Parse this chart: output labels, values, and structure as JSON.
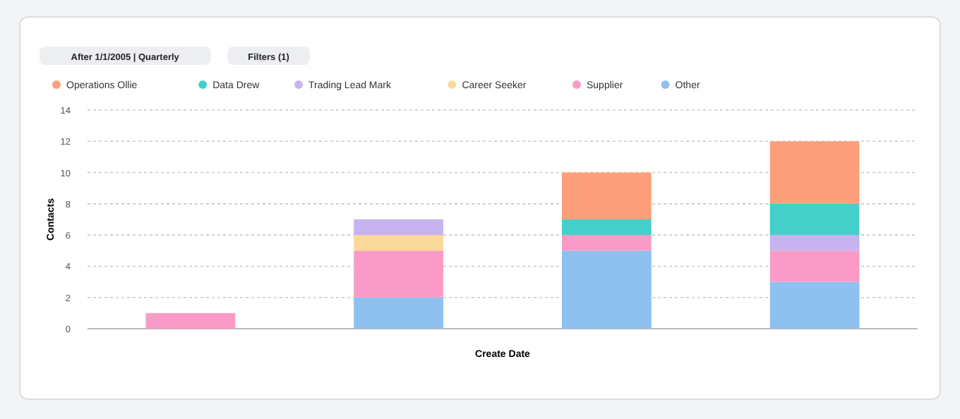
{
  "chart_data": {
    "type": "bar",
    "stacked": true,
    "xlabel": "Create Date",
    "ylabel": "Contacts",
    "annotations": [
      "After 1/1/2005 | Quarterly",
      "Filters (1)"
    ],
    "categories": [
      null,
      null,
      null,
      null
    ],
    "series": [
      {
        "name": "Other",
        "color": "#8ec1f0",
        "values": [
          0,
          2,
          5,
          3
        ]
      },
      {
        "name": "Supplier",
        "color": "#f99bc6",
        "values": [
          1,
          3,
          1,
          2
        ]
      },
      {
        "name": "Career Seeker",
        "color": "#fad99a",
        "values": [
          0,
          1,
          0,
          0
        ]
      },
      {
        "name": "Trading Lead Mark",
        "color": "#c6b3ef",
        "values": [
          0,
          1,
          0,
          1
        ]
      },
      {
        "name": "Data Drew",
        "color": "#43d0c8",
        "values": [
          0,
          0,
          1,
          2
        ]
      },
      {
        "name": "Operations Ollie",
        "color": "#fc9f7a",
        "values": [
          0,
          0,
          3,
          4
        ]
      }
    ],
    "ylim": [
      0,
      14
    ],
    "yticks": [
      0,
      2,
      4,
      6,
      8,
      10,
      12,
      14
    ],
    "grid": "y",
    "legend": "top left"
  }
}
